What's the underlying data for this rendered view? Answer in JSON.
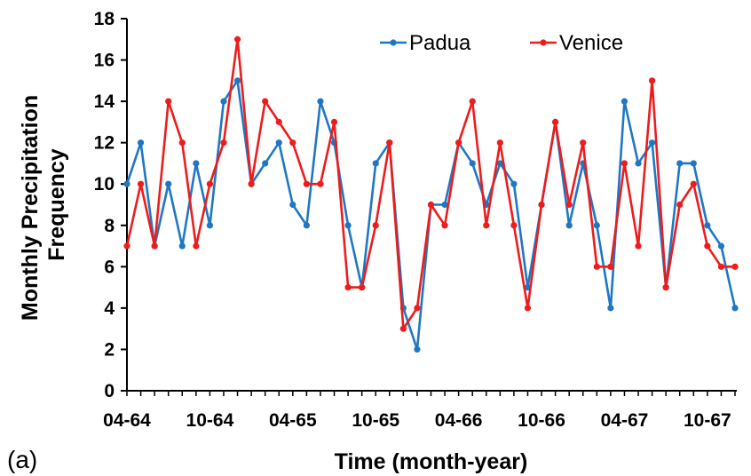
{
  "panel_label": "(a)",
  "chart_data": {
    "type": "line",
    "title": "",
    "xlabel": "Time (month-year)",
    "ylabel_lines": [
      "Monthly Precipitation",
      "Frequency"
    ],
    "ylim": [
      0,
      18
    ],
    "ytick_step": 2,
    "x_tick_labels": [
      "04-64",
      "10-64",
      "04-65",
      "10-65",
      "04-66",
      "10-66",
      "04-67",
      "10-67"
    ],
    "x_tick_every": 6,
    "legend_position": "top-right",
    "months": [
      "04-64",
      "05-64",
      "06-64",
      "07-64",
      "08-64",
      "09-64",
      "10-64",
      "11-64",
      "12-64",
      "01-65",
      "02-65",
      "03-65",
      "04-65",
      "05-65",
      "06-65",
      "07-65",
      "08-65",
      "09-65",
      "10-65",
      "11-65",
      "12-65",
      "01-66",
      "02-66",
      "03-66",
      "04-66",
      "05-66",
      "06-66",
      "07-66",
      "08-66",
      "09-66",
      "10-66",
      "11-66",
      "12-66",
      "01-67",
      "02-67",
      "03-67",
      "04-67",
      "05-67",
      "06-67",
      "07-67",
      "08-67",
      "09-67",
      "10-67",
      "11-67",
      "12-67"
    ],
    "series": [
      {
        "name": "Padua",
        "color": "#1f77c4",
        "values": [
          10,
          12,
          7,
          10,
          7,
          11,
          8,
          14,
          15,
          10,
          11,
          12,
          9,
          8,
          14,
          12,
          8,
          5,
          11,
          12,
          4,
          2,
          9,
          9,
          12,
          11,
          9,
          11,
          10,
          5,
          9,
          13,
          8,
          11,
          8,
          4,
          14,
          11,
          12,
          5,
          11,
          11,
          8,
          7,
          4
        ]
      },
      {
        "name": "Venice",
        "color": "#ee1c1c",
        "values": [
          7,
          10,
          7,
          14,
          12,
          7,
          10,
          12,
          17,
          10,
          14,
          13,
          12,
          10,
          10,
          13,
          5,
          5,
          8,
          12,
          3,
          4,
          9,
          8,
          12,
          14,
          8,
          12,
          8,
          4,
          9,
          13,
          9,
          12,
          6,
          6,
          11,
          7,
          15,
          5,
          9,
          10,
          7,
          6,
          6
        ]
      }
    ]
  }
}
